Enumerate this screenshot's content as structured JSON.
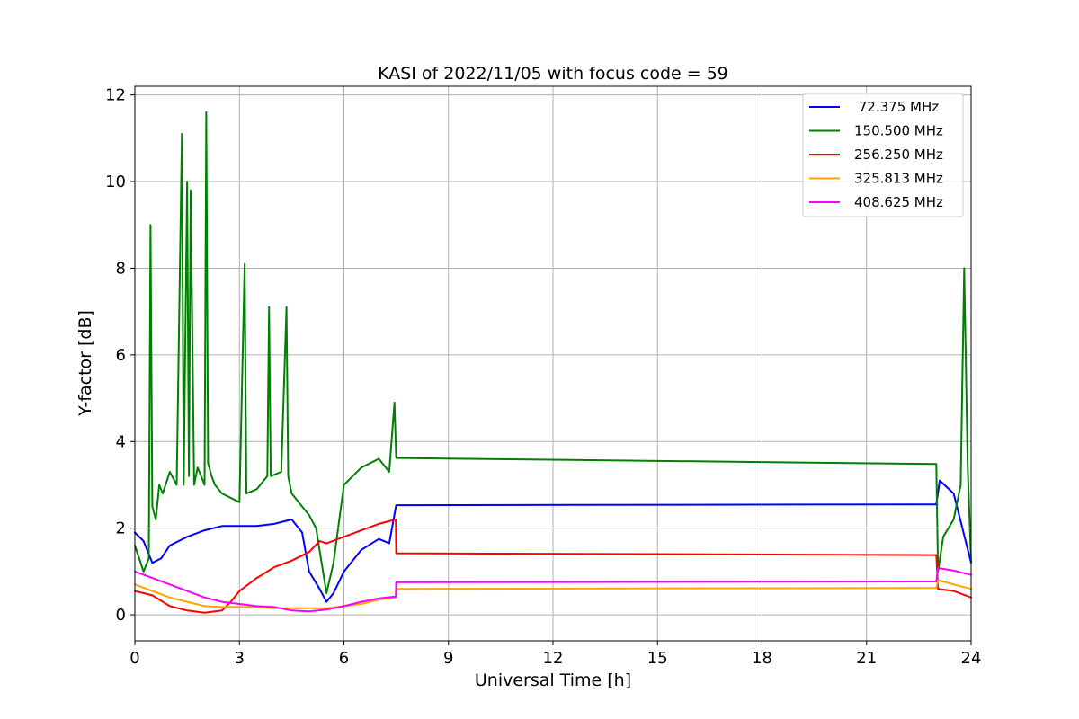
{
  "chart_data": {
    "type": "line",
    "title": "KASI of 2022/11/05 with focus code = 59",
    "xlabel": "Universal Time [h]",
    "ylabel": "Y-factor [dB]",
    "xlim": [
      0,
      24
    ],
    "ylim": [
      -0.6,
      12.2
    ],
    "xticks": [
      0,
      3,
      6,
      9,
      12,
      15,
      18,
      21,
      24
    ],
    "yticks": [
      0,
      2,
      4,
      6,
      8,
      10,
      12
    ],
    "grid": true,
    "legend_position": "top-right",
    "series": [
      {
        "name": "72.375 MHz",
        "legend_label": " 72.375 MHz",
        "color": "#0000ff",
        "x": [
          0,
          0.25,
          0.5,
          0.75,
          1.0,
          1.5,
          2.0,
          2.5,
          3.0,
          3.5,
          4.0,
          4.5,
          4.8,
          5.0,
          5.3,
          5.5,
          5.7,
          6.0,
          6.5,
          7.0,
          7.3,
          7.5,
          23.0,
          23.1,
          23.5,
          24.0
        ],
        "y": [
          1.9,
          1.7,
          1.2,
          1.3,
          1.6,
          1.8,
          1.95,
          2.05,
          2.05,
          2.05,
          2.1,
          2.2,
          1.9,
          1.0,
          0.6,
          0.3,
          0.5,
          1.0,
          1.5,
          1.75,
          1.65,
          2.53,
          2.55,
          3.1,
          2.8,
          1.2
        ]
      },
      {
        "name": "150.500 MHz",
        "legend_label": "150.500 MHz",
        "color": "#008000",
        "x": [
          0,
          0.25,
          0.4,
          0.45,
          0.5,
          0.6,
          0.7,
          0.8,
          1.0,
          1.2,
          1.35,
          1.4,
          1.5,
          1.55,
          1.6,
          1.7,
          1.8,
          2.0,
          2.05,
          2.1,
          2.2,
          2.3,
          2.5,
          3.0,
          3.15,
          3.2,
          3.5,
          3.8,
          3.85,
          3.9,
          4.2,
          4.35,
          4.4,
          4.5,
          5.0,
          5.2,
          5.5,
          5.7,
          6.0,
          6.5,
          7.0,
          7.3,
          7.45,
          7.5,
          23.0,
          23.05,
          23.2,
          23.5,
          23.7,
          23.8,
          23.9,
          24.0
        ],
        "y": [
          1.6,
          1.0,
          1.3,
          9.0,
          2.5,
          2.2,
          3.0,
          2.8,
          3.3,
          3.0,
          11.1,
          3.0,
          10.0,
          3.2,
          9.8,
          3.0,
          3.4,
          3.0,
          11.6,
          3.5,
          3.2,
          3.0,
          2.8,
          2.6,
          8.1,
          2.8,
          2.9,
          3.2,
          7.1,
          3.2,
          3.3,
          7.1,
          3.2,
          2.8,
          2.3,
          2.0,
          0.5,
          1.2,
          3.0,
          3.4,
          3.6,
          3.3,
          4.9,
          3.62,
          3.48,
          1.0,
          1.8,
          2.2,
          3.0,
          8.0,
          3.5,
          1.2
        ]
      },
      {
        "name": "256.250 MHz",
        "legend_label": "256.250 MHz",
        "color": "#ff0000",
        "x": [
          0,
          0.5,
          1.0,
          1.5,
          2.0,
          2.5,
          2.75,
          3.0,
          3.5,
          4.0,
          4.5,
          5.0,
          5.3,
          5.5,
          6.0,
          6.5,
          7.0,
          7.49,
          7.5,
          23.0,
          23.05,
          23.5,
          24.0
        ],
        "y": [
          0.55,
          0.45,
          0.2,
          0.1,
          0.05,
          0.1,
          0.3,
          0.55,
          0.85,
          1.1,
          1.25,
          1.45,
          1.7,
          1.65,
          1.8,
          1.95,
          2.1,
          2.2,
          1.42,
          1.38,
          0.6,
          0.55,
          0.4
        ]
      },
      {
        "name": "325.813 MHz",
        "legend_label": "325.813 MHz",
        "color": "#ffa500",
        "x": [
          0,
          0.5,
          1.0,
          1.5,
          2.0,
          2.5,
          3.0,
          3.5,
          4.0,
          4.5,
          5.0,
          5.5,
          6.0,
          6.5,
          7.0,
          7.49,
          7.5,
          23.0,
          23.05,
          23.5,
          24.0
        ],
        "y": [
          0.7,
          0.55,
          0.4,
          0.3,
          0.2,
          0.18,
          0.18,
          0.18,
          0.15,
          0.15,
          0.15,
          0.15,
          0.2,
          0.25,
          0.35,
          0.4,
          0.6,
          0.62,
          0.8,
          0.7,
          0.6
        ]
      },
      {
        "name": "408.625 MHz",
        "legend_label": "408.625 MHz",
        "color": "#ff00ff",
        "x": [
          0,
          0.5,
          1.0,
          1.5,
          2.0,
          2.5,
          3.0,
          3.5,
          4.0,
          4.5,
          5.0,
          5.5,
          6.0,
          6.5,
          7.0,
          7.49,
          7.5,
          23.0,
          23.05,
          23.5,
          24.0
        ],
        "y": [
          1.0,
          0.85,
          0.7,
          0.55,
          0.4,
          0.3,
          0.25,
          0.2,
          0.18,
          0.1,
          0.08,
          0.12,
          0.2,
          0.3,
          0.38,
          0.42,
          0.75,
          0.77,
          1.08,
          1.02,
          0.92
        ]
      }
    ]
  }
}
